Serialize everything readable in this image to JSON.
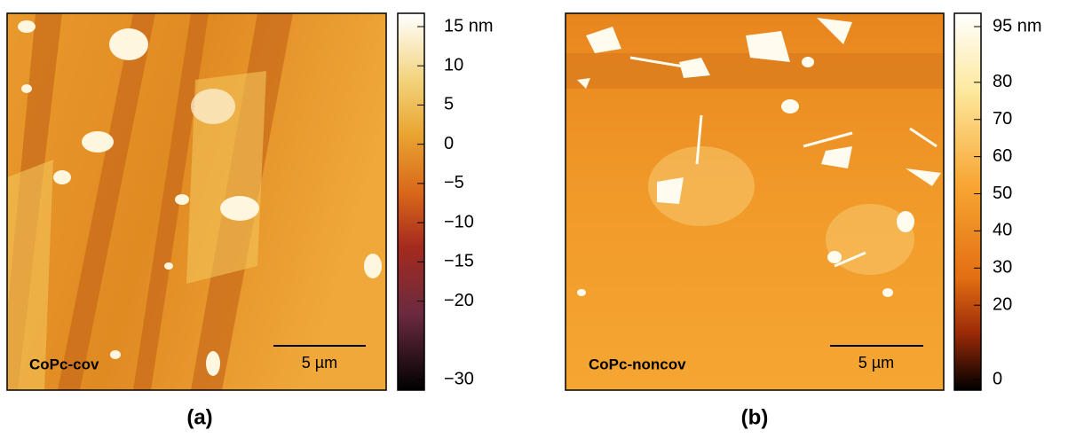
{
  "panels": [
    {
      "label": "(a)",
      "sample": "CoPc-cov",
      "scale_bar": "5 µm",
      "colorbar": {
        "lim": [
          -30,
          15
        ],
        "ticks": [
          {
            "value": 15,
            "label": "15 nm"
          },
          10,
          5,
          0,
          {
            "value": -5,
            "label": "−5"
          },
          {
            "value": -10,
            "label": "−10"
          },
          {
            "value": -15,
            "label": "−15"
          },
          {
            "value": -20,
            "label": "−20"
          },
          {
            "value": -30,
            "label": "−30"
          }
        ]
      }
    },
    {
      "label": "(b)",
      "sample": "CoPc-noncov",
      "scale_bar": "5 µm",
      "colorbar": {
        "lim": [
          0,
          95
        ],
        "ticks": [
          {
            "value": 95,
            "label": "95 nm"
          },
          80,
          70,
          60,
          50,
          40,
          30,
          20,
          0
        ]
      }
    }
  ]
}
